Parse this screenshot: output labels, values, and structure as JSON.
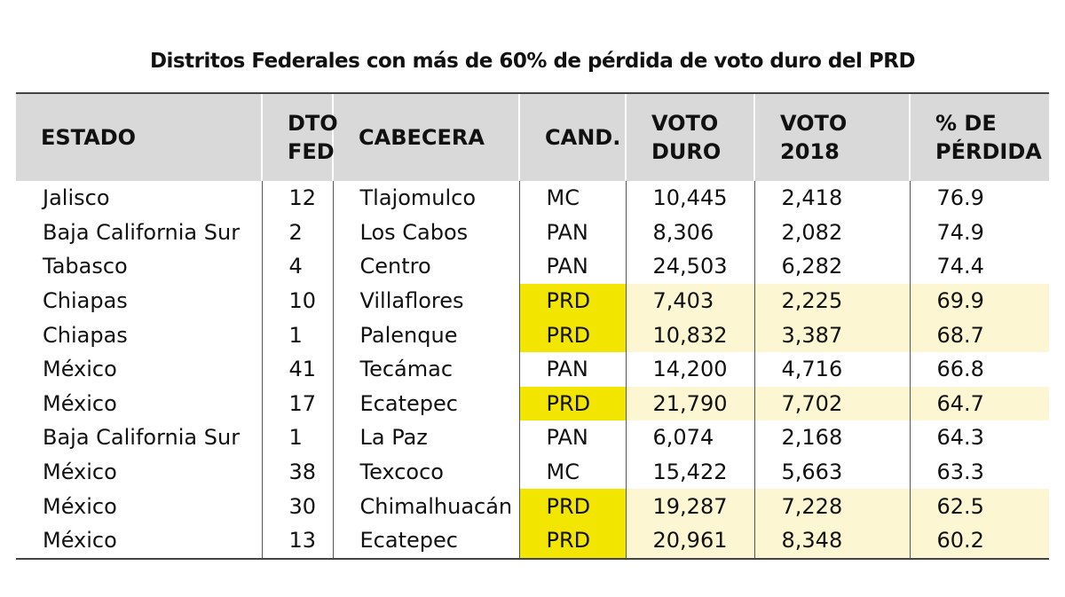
{
  "title": "Distritos Federales con más de 60% de pérdida de voto duro del PRD",
  "table": {
    "header": [
      "ESTADO",
      "DTO\nFED",
      "CABECERA",
      "CAND.",
      "VOTO\nDURO",
      "VOTO\n2018",
      "% DE\nPÉRDIDA"
    ],
    "rows": [
      [
        "Jalisco",
        "12",
        "Tlajomulco",
        "MC",
        "10,445",
        "2,418",
        "76.9"
      ],
      [
        "Baja California Sur",
        "2",
        "Los Cabos",
        "PAN",
        "8,306",
        "2,082",
        "74.9"
      ],
      [
        "Tabasco",
        "4",
        "Centro",
        "PAN",
        "24,503",
        "6,282",
        "74.4"
      ],
      [
        "Chiapas",
        "10",
        "Villaflores",
        "PRD",
        "7,403",
        "2,225",
        "69.9"
      ],
      [
        "Chiapas",
        "1",
        "Palenque",
        "PRD",
        "10,832",
        "3,387",
        "68.7"
      ],
      [
        "México",
        "41",
        "Tecámac",
        "PAN",
        "14,200",
        "4,716",
        "66.8"
      ],
      [
        "México",
        "17",
        "Ecatepec",
        "PRD",
        "21,790",
        "7,702",
        "64.7"
      ],
      [
        "Baja California Sur",
        "1",
        "La Paz",
        "PAN",
        "6,074",
        "2,168",
        "64.3"
      ],
      [
        "México",
        "38",
        "Texcoco",
        "MC",
        "15,422",
        "5,663",
        "63.3"
      ],
      [
        "México",
        "30",
        "Chimalhuacán",
        "PRD",
        "19,287",
        "7,228",
        "62.5"
      ],
      [
        "México",
        "13",
        "Ecatepec",
        "PRD",
        "20,961",
        "8,348",
        "60.2"
      ]
    ]
  }
}
